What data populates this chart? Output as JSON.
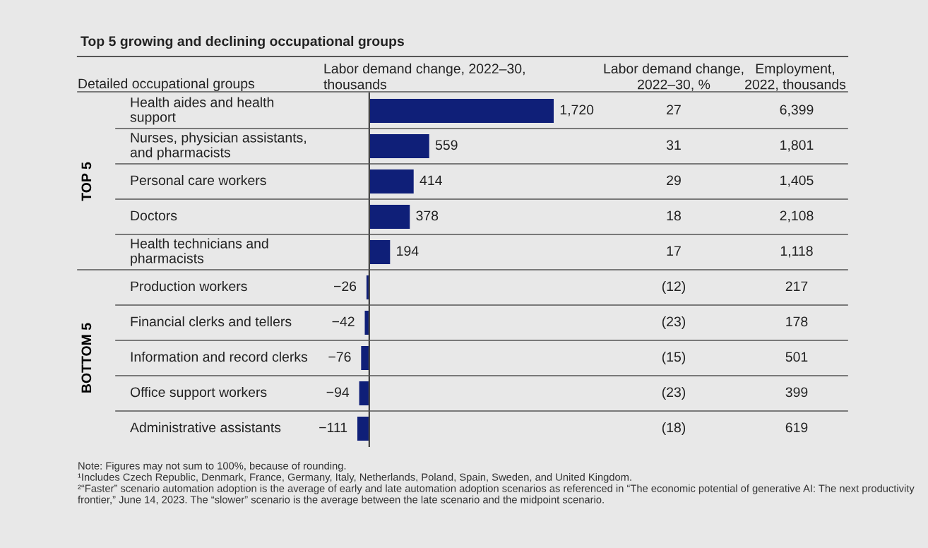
{
  "chart_data": {
    "type": "bar",
    "orientation": "horizontal",
    "title": "Top 5 growing and declining occupational groups",
    "xlabel": "Labor demand change, 2022–30,\nthousands",
    "categories": [
      "Health aides and health\nsupport",
      "Nurses, physician assistants,\nand pharmacists",
      "Personal care workers",
      "Doctors",
      "Health technicians and\npharmacists",
      "Production workers",
      "Financial clerks and tellers",
      "Information and record clerks",
      "Office support workers",
      "Administrative assistants"
    ],
    "values": [
      1720,
      559,
      414,
      378,
      194,
      -26,
      -42,
      -76,
      -94,
      -111
    ],
    "value_labels": [
      "1,720",
      "559",
      "414",
      "378",
      "194",
      "−26",
      "−42",
      "−76",
      "−94",
      "−111"
    ],
    "color": "#0f1f78",
    "annotations": [
      "Detailed occupational groups",
      "TOP 5",
      "BOTTOM 5",
      "Labor demand change,\n2022–30, %",
      "Employment,\n2022, thousands",
      "27",
      "31",
      "29",
      "18",
      "17",
      "(12)",
      "(23)",
      "(15)",
      "(23)",
      "(18)",
      "6,399",
      "1,801",
      "1,405",
      "2,108",
      "1,118",
      "217",
      "178",
      "501",
      "399",
      "619",
      "Note: Figures may not sum to 100%, because of rounding.",
      "¹Includes Czech Republic, Denmark, France, Germany, Italy, Netherlands, Poland, Spain, Sweden, and United Kingdom.",
      "²“Faster” scenario automation adoption is the average of early and late automation adoption scenarios as referenced in “The economic potential of generative AI: The next productivity frontier,” June 14, 2023. The “slower” scenario is the average between the late scenario and the midpoint scenario."
    ]
  }
}
